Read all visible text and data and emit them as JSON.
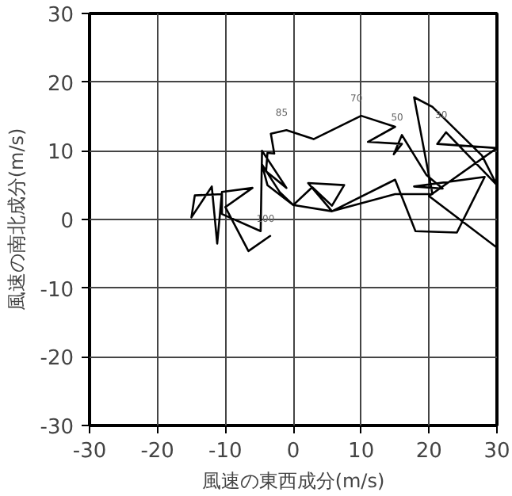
{
  "chart_data": {
    "type": "line",
    "xlabel": "風速の東西成分(m/s)",
    "ylabel": "風速の南北成分(m/s)",
    "x": [
      -3.4,
      -6.6,
      -10,
      -6,
      -10.5,
      -11.2,
      -12,
      -15,
      -14.5,
      -10.5,
      -10.5,
      -4.8,
      -4.6,
      -1,
      -4,
      -3.8,
      -2.8,
      -3.3,
      -1,
      3,
      10,
      15,
      11,
      16,
      14.8,
      16,
      19.6,
      22,
      17.8,
      28.2,
      24.1,
      18,
      15,
      5.7,
      2.2,
      7.5,
      5.7,
      2.8,
      0,
      -3.8,
      -4.6,
      -2,
      0,
      5.7,
      15,
      20.5,
      17.8,
      20.5,
      27.8,
      30,
      22.5,
      21.2,
      30,
      20,
      30
    ],
    "values": [
      -2.4,
      -4.6,
      1.8,
      4.6,
      4,
      -3.5,
      4.8,
      0.3,
      3.5,
      3.7,
      0.8,
      -1.7,
      10,
      4.6,
      7,
      9.7,
      9.6,
      12.5,
      13,
      11.7,
      15.1,
      13.5,
      11.3,
      11,
      9.5,
      12.3,
      6.5,
      4.5,
      4.8,
      6.2,
      -1.9,
      -1.7,
      5.8,
      1.2,
      5.3,
      5,
      2,
      4.7,
      2.1,
      5,
      8,
      4,
      2.1,
      1.2,
      3.7,
      3.7,
      17.8,
      16.4,
      9.3,
      5,
      12.7,
      11,
      10.4,
      3.4,
      -4.1
    ],
    "color": "#000000",
    "marker": "none",
    "line_style": "solid",
    "xlim": [
      -30,
      30
    ],
    "ylim": [
      -30,
      30
    ],
    "xticks": [
      -30,
      -20,
      -10,
      0,
      10,
      20,
      30
    ],
    "yticks": [
      -30,
      -20,
      -10,
      0,
      10,
      20,
      30
    ],
    "grid": true,
    "annotations": [
      {
        "text": "100",
        "x": -3.4,
        "y": -2.4
      },
      {
        "text": "85",
        "x": -1,
        "y": 13
      },
      {
        "text": "70",
        "x": 10,
        "y": 15.1
      },
      {
        "text": "50",
        "x": 16,
        "y": 12.3
      },
      {
        "text": "30",
        "x": 22.5,
        "y": 12.7
      }
    ]
  }
}
